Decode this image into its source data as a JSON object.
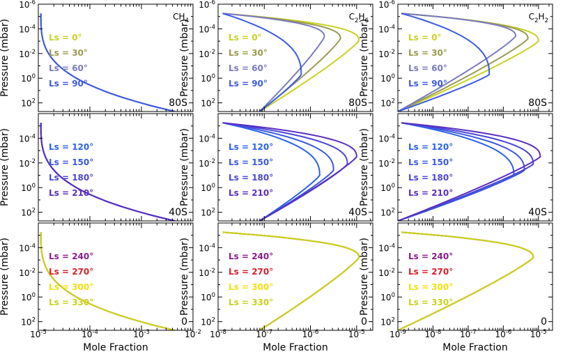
{
  "figure": {
    "y_axis_label": "Pressure (mbar)",
    "x_axis_label": "Mole Fraction"
  },
  "colors": {
    "Ls 0": "#c8d21e",
    "Ls 30": "#9a9a50",
    "Ls 60": "#7a7ac0",
    "Ls 90": "#3c5ae6",
    "Ls 120": "#2a60ee",
    "Ls 150": "#3a58e4",
    "Ls 180": "#4a46d6",
    "Ls 210": "#5a2ec0",
    "Ls 240": "#8a1a8c",
    "Ls 270": "#d8202c",
    "Ls 300": "#f0e010",
    "Ls 330": "#c8d21e"
  },
  "rows": [
    {
      "latitude_label": "80S",
      "legend": [
        "Ls =   0°",
        "Ls =  30°",
        "Ls =  60°",
        "Ls =  90°"
      ],
      "series_keys": [
        "Ls 0",
        "Ls 30",
        "Ls 60",
        "Ls 90"
      ]
    },
    {
      "latitude_label": "40S",
      "legend": [
        "Ls = 120°",
        "Ls = 150°",
        "Ls = 180°",
        "Ls = 210°"
      ],
      "series_keys": [
        "Ls 120",
        "Ls 150",
        "Ls 180",
        "Ls 210"
      ]
    },
    {
      "latitude_label": "0",
      "legend": [
        "Ls = 240°",
        "Ls = 270°",
        "Ls = 300°",
        "Ls = 330°"
      ],
      "series_keys": [
        "Ls 240",
        "Ls 270",
        "Ls 300",
        "Ls 330"
      ]
    }
  ],
  "columns": [
    {
      "species_base": "CH",
      "species_sub": "4",
      "species_base2": "",
      "species_sub2": "",
      "x_ticks": [
        "10^-5",
        "10^-4",
        "10^-3",
        "10^-2"
      ],
      "xlim_log10": [
        -5,
        -2
      ]
    },
    {
      "species_base": "C",
      "species_sub": "2",
      "species_base2": "H",
      "species_sub2": "6",
      "x_ticks": [
        "10^-8",
        "10^-7",
        "10^-6",
        "10^-5"
      ],
      "xlim_log10": [
        -8,
        -4.65
      ]
    },
    {
      "species_base": "C",
      "species_sub": "2",
      "species_base2": "H",
      "species_sub2": "2",
      "x_ticks": [
        "10^-9",
        "10^-8",
        "10^-7",
        "10^-6",
        "10^-5"
      ],
      "xlim_log10": [
        -9,
        -4.6
      ]
    }
  ],
  "y_ticks": [
    "10^-6",
    "10^-4",
    "10^-2",
    "10^0",
    "10^2"
  ],
  "chart_data": {
    "type": "line",
    "title": "",
    "xlabel": "Mole Fraction",
    "ylabel": "Pressure (mbar)",
    "xscale": "log",
    "yscale": "log",
    "y_inverted": true,
    "ylim_log10": [
      -6,
      2.7
    ],
    "grid": false,
    "panels": [
      {
        "row": 0,
        "col": 0,
        "species": "CH4",
        "latitude": "80S",
        "series": [
          {
            "name": "Ls = 0°",
            "nose_log10_mf": -2.35,
            "nose_log10_p": 2.7
          },
          {
            "name": "Ls = 30°",
            "nose_log10_mf": -2.35,
            "nose_log10_p": 2.7
          },
          {
            "name": "Ls = 60°",
            "nose_log10_mf": -2.35,
            "nose_log10_p": 2.7
          },
          {
            "name": "Ls = 90°",
            "nose_log10_mf": -2.35,
            "nose_log10_p": 2.7
          }
        ]
      },
      {
        "row": 1,
        "col": 0,
        "species": "CH4",
        "latitude": "40S",
        "series": [
          {
            "name": "Ls = 120°",
            "nose_log10_mf": -2.35,
            "nose_log10_p": 2.7
          },
          {
            "name": "Ls = 150°",
            "nose_log10_mf": -2.35,
            "nose_log10_p": 2.7
          },
          {
            "name": "Ls = 180°",
            "nose_log10_mf": -2.35,
            "nose_log10_p": 2.7
          },
          {
            "name": "Ls = 210°",
            "nose_log10_mf": -2.35,
            "nose_log10_p": 2.7
          }
        ]
      },
      {
        "row": 2,
        "col": 0,
        "species": "CH4",
        "latitude": "0",
        "series": [
          {
            "name": "Ls = 240°",
            "nose_log10_mf": -2.35,
            "nose_log10_p": 2.7
          },
          {
            "name": "Ls = 270°",
            "nose_log10_mf": -2.35,
            "nose_log10_p": 2.7
          },
          {
            "name": "Ls = 300°",
            "nose_log10_mf": -2.35,
            "nose_log10_p": 2.7
          },
          {
            "name": "Ls = 330°",
            "nose_log10_mf": -2.35,
            "nose_log10_p": 2.7
          }
        ]
      },
      {
        "row": 0,
        "col": 1,
        "species": "C2H6",
        "latitude": "80S",
        "series": [
          {
            "name": "Ls = 0°",
            "nose_log10_mf": -4.95,
            "nose_log10_p": -3.05
          },
          {
            "name": "Ls = 30°",
            "nose_log10_mf": -5.35,
            "nose_log10_p": -3.2
          },
          {
            "name": "Ls = 60°",
            "nose_log10_mf": -5.7,
            "nose_log10_p": -3.35
          },
          {
            "name": "Ls = 90°",
            "nose_log10_mf": -6.2,
            "nose_log10_p": -0.3
          }
        ]
      },
      {
        "row": 1,
        "col": 1,
        "species": "C2H6",
        "latitude": "40S",
        "series": [
          {
            "name": "Ls = 120°",
            "nose_log10_mf": -5.8,
            "nose_log10_p": -1.0
          },
          {
            "name": "Ls = 150°",
            "nose_log10_mf": -5.5,
            "nose_log10_p": -1.4
          },
          {
            "name": "Ls = 180°",
            "nose_log10_mf": -5.2,
            "nose_log10_p": -1.9
          },
          {
            "name": "Ls = 210°",
            "nose_log10_mf": -5.0,
            "nose_log10_p": -2.5
          }
        ]
      },
      {
        "row": 2,
        "col": 1,
        "species": "C2H6",
        "latitude": "0",
        "series": [
          {
            "name": "Ls = 240°",
            "nose_log10_mf": -4.95,
            "nose_log10_p": -3.2
          },
          {
            "name": "Ls = 270°",
            "nose_log10_mf": -4.95,
            "nose_log10_p": -3.2
          },
          {
            "name": "Ls = 300°",
            "nose_log10_mf": -4.95,
            "nose_log10_p": -3.2
          },
          {
            "name": "Ls = 330°",
            "nose_log10_mf": -4.95,
            "nose_log10_p": -3.2
          }
        ]
      },
      {
        "row": 0,
        "col": 2,
        "species": "C2H2",
        "latitude": "80S",
        "series": [
          {
            "name": "Ls = 0°",
            "nose_log10_mf": -5.0,
            "nose_log10_p": -3.0
          },
          {
            "name": "Ls = 30°",
            "nose_log10_mf": -5.3,
            "nose_log10_p": -3.2
          },
          {
            "name": "Ls = 60°",
            "nose_log10_mf": -5.65,
            "nose_log10_p": -3.4
          },
          {
            "name": "Ls = 90°",
            "nose_log10_mf": -6.4,
            "nose_log10_p": -0.3
          }
        ]
      },
      {
        "row": 1,
        "col": 2,
        "species": "C2H2",
        "latitude": "40S",
        "series": [
          {
            "name": "Ls = 120°",
            "nose_log10_mf": -5.7,
            "nose_log10_p": -1.0
          },
          {
            "name": "Ls = 150°",
            "nose_log10_mf": -5.4,
            "nose_log10_p": -1.4
          },
          {
            "name": "Ls = 180°",
            "nose_log10_mf": -5.15,
            "nose_log10_p": -1.9
          },
          {
            "name": "Ls = 210°",
            "nose_log10_mf": -4.95,
            "nose_log10_p": -2.5
          }
        ]
      },
      {
        "row": 2,
        "col": 2,
        "species": "C2H2",
        "latitude": "0",
        "series": [
          {
            "name": "Ls = 240°",
            "nose_log10_mf": -5.15,
            "nose_log10_p": -3.2
          },
          {
            "name": "Ls = 270°",
            "nose_log10_mf": -5.15,
            "nose_log10_p": -3.2
          },
          {
            "name": "Ls = 300°",
            "nose_log10_mf": -5.15,
            "nose_log10_p": -3.2
          },
          {
            "name": "Ls = 330°",
            "nose_log10_mf": -5.15,
            "nose_log10_p": -3.2
          }
        ]
      }
    ]
  }
}
